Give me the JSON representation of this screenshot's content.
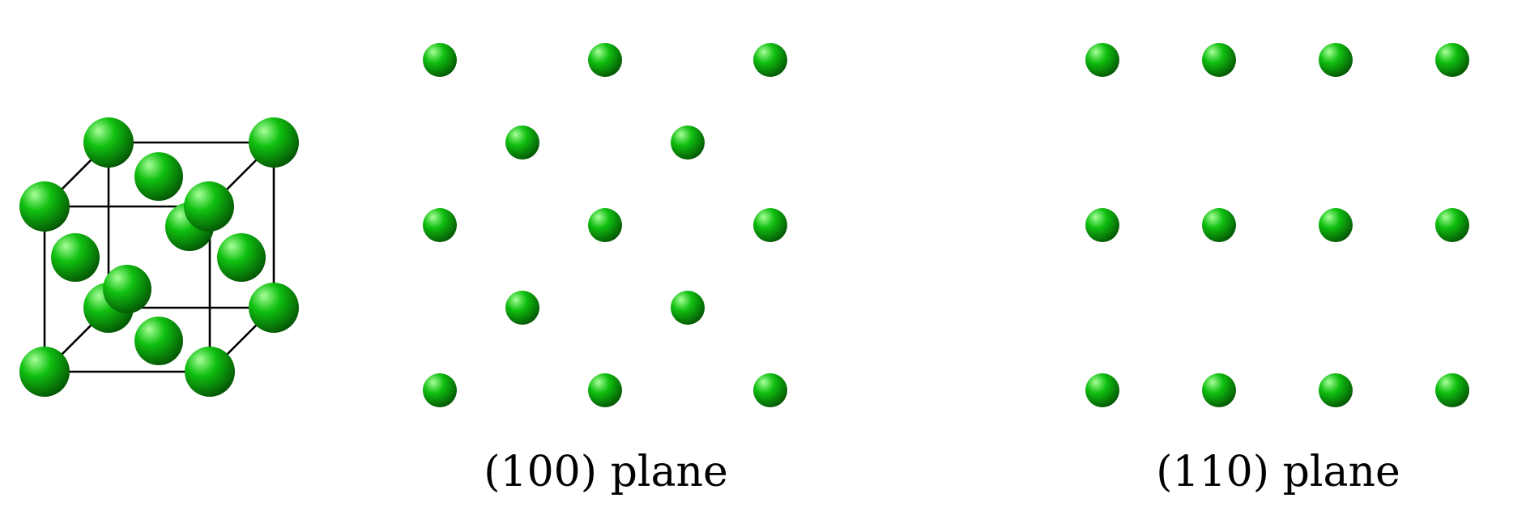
{
  "colors": {
    "atom": "#10c010",
    "atom_highlight": "#a8ff9a",
    "atom_shadow": "#045504",
    "edge": "#000000",
    "background": "#ffffff"
  },
  "unit_cell": {
    "lattice": "face-centered cubic",
    "corner_atoms": 8,
    "face_center_atoms": 6
  },
  "planes": [
    {
      "id": "plane-100",
      "label": "(100) plane",
      "rows": [
        3,
        2,
        3,
        2,
        3
      ]
    },
    {
      "id": "plane-110",
      "label": "(110) plane",
      "rows": [
        4,
        4,
        4
      ]
    }
  ]
}
